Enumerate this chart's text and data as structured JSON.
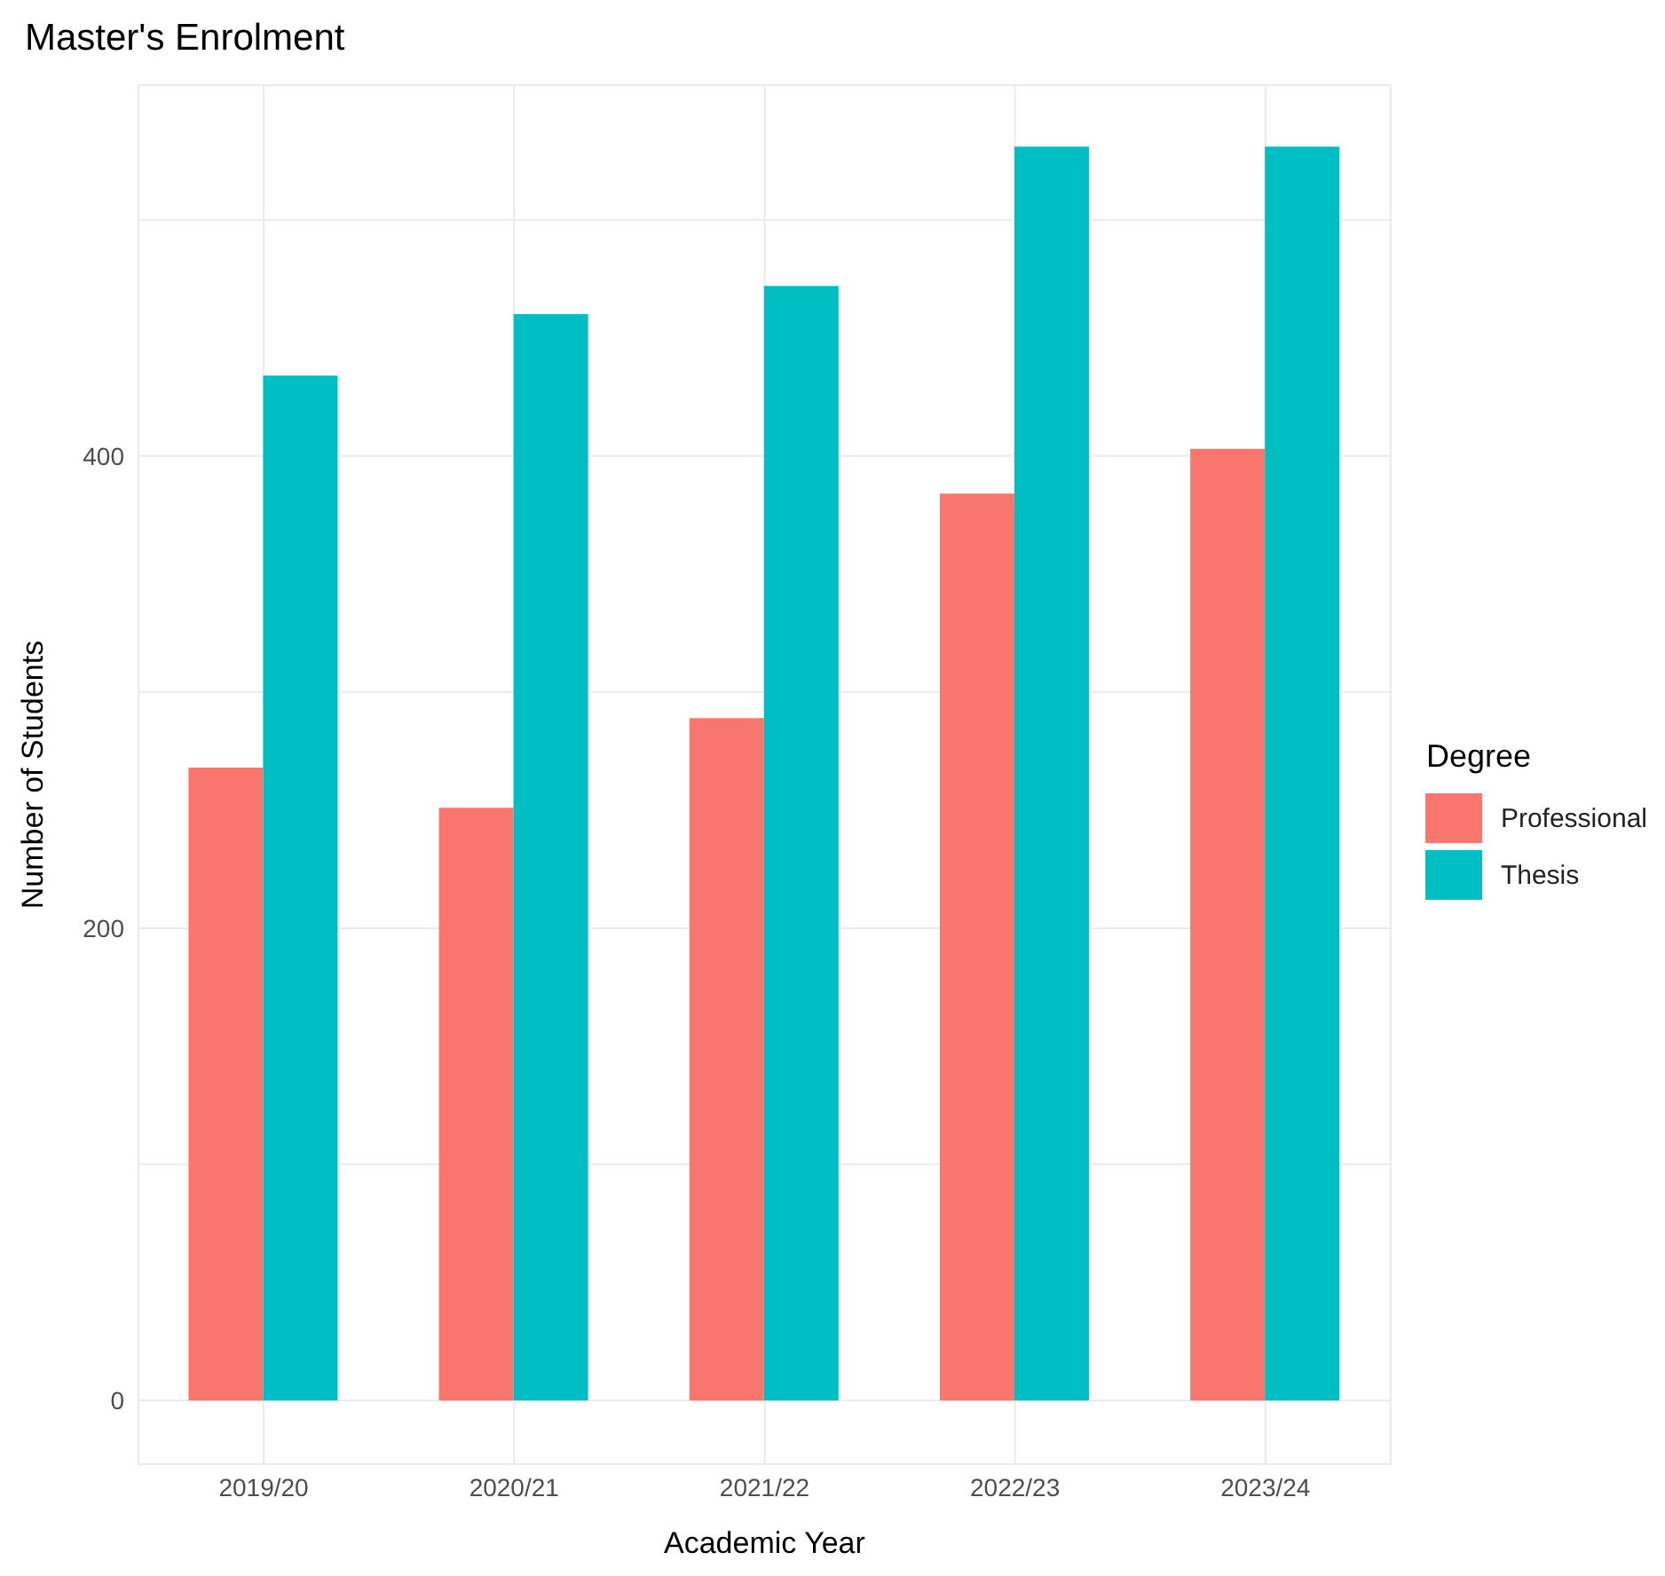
{
  "chart_data": {
    "type": "bar",
    "title": "Master's Enrolment",
    "xlabel": "Academic Year",
    "ylabel": "Number of Students",
    "legend_title": "Degree",
    "categories": [
      "2019/20",
      "2020/21",
      "2021/22",
      "2022/23",
      "2023/24"
    ],
    "series": [
      {
        "name": "Professional",
        "color": "#f8766d",
        "values": [
          268,
          251,
          289,
          384,
          403
        ]
      },
      {
        "name": "Thesis",
        "color": "#00bfc4",
        "values": [
          434,
          460,
          472,
          531,
          531
        ]
      }
    ],
    "ylim": [
      -27,
      557
    ],
    "yticks": [
      0,
      {
        "value": 100,
        "label": null
      },
      200,
      {
        "value": 300,
        "label": null
      },
      400,
      {
        "value": 500,
        "label": null
      }
    ],
    "grid": true,
    "legend": "right"
  }
}
